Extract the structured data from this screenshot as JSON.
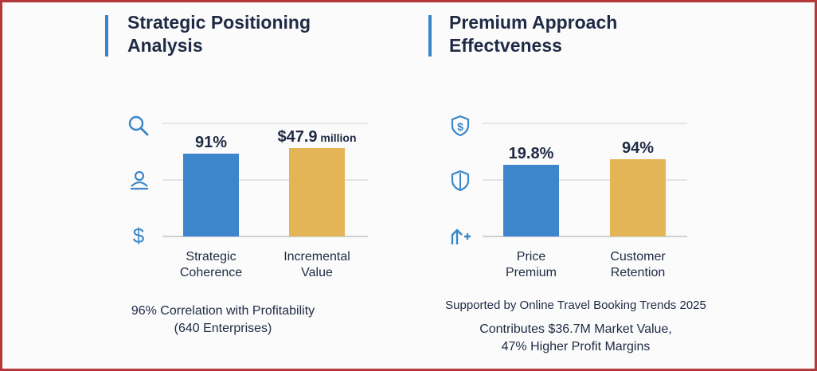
{
  "chart_data": [
    {
      "type": "bar",
      "title": "Strategic Positioning Analysis",
      "categories": [
        "Strategic\nCoherence",
        "Incremental\nValue"
      ],
      "values": [
        91,
        47.9
      ],
      "value_labels": [
        "91%",
        "$47.9"
      ],
      "value_label_suffixes": [
        "",
        "million"
      ],
      "colors": [
        "#3e86cc",
        "#e3b556"
      ],
      "icons": [
        "search-icon",
        "user-group-icon",
        "dollar-icon"
      ],
      "captions": [
        "96% Correlation with Profitability",
        "(640 Enterprises)"
      ]
    },
    {
      "type": "bar",
      "title": "Premium Approach Effectveness",
      "categories": [
        "Price\nPremium",
        "Customer\nRetention"
      ],
      "values": [
        19.8,
        94
      ],
      "value_labels": [
        "19.8%",
        "94%"
      ],
      "value_label_suffixes": [
        "",
        ""
      ],
      "colors": [
        "#3e86cc",
        "#e3b556"
      ],
      "icons": [
        "dollar-shield-icon",
        "shield-icon",
        "growth-arrow-icon"
      ],
      "captions": [
        "Supported by Online Travel Booking Trends 2025",
        "Contributes $36.7M Market Value,",
        "47% Higher Profit Margins"
      ]
    }
  ]
}
